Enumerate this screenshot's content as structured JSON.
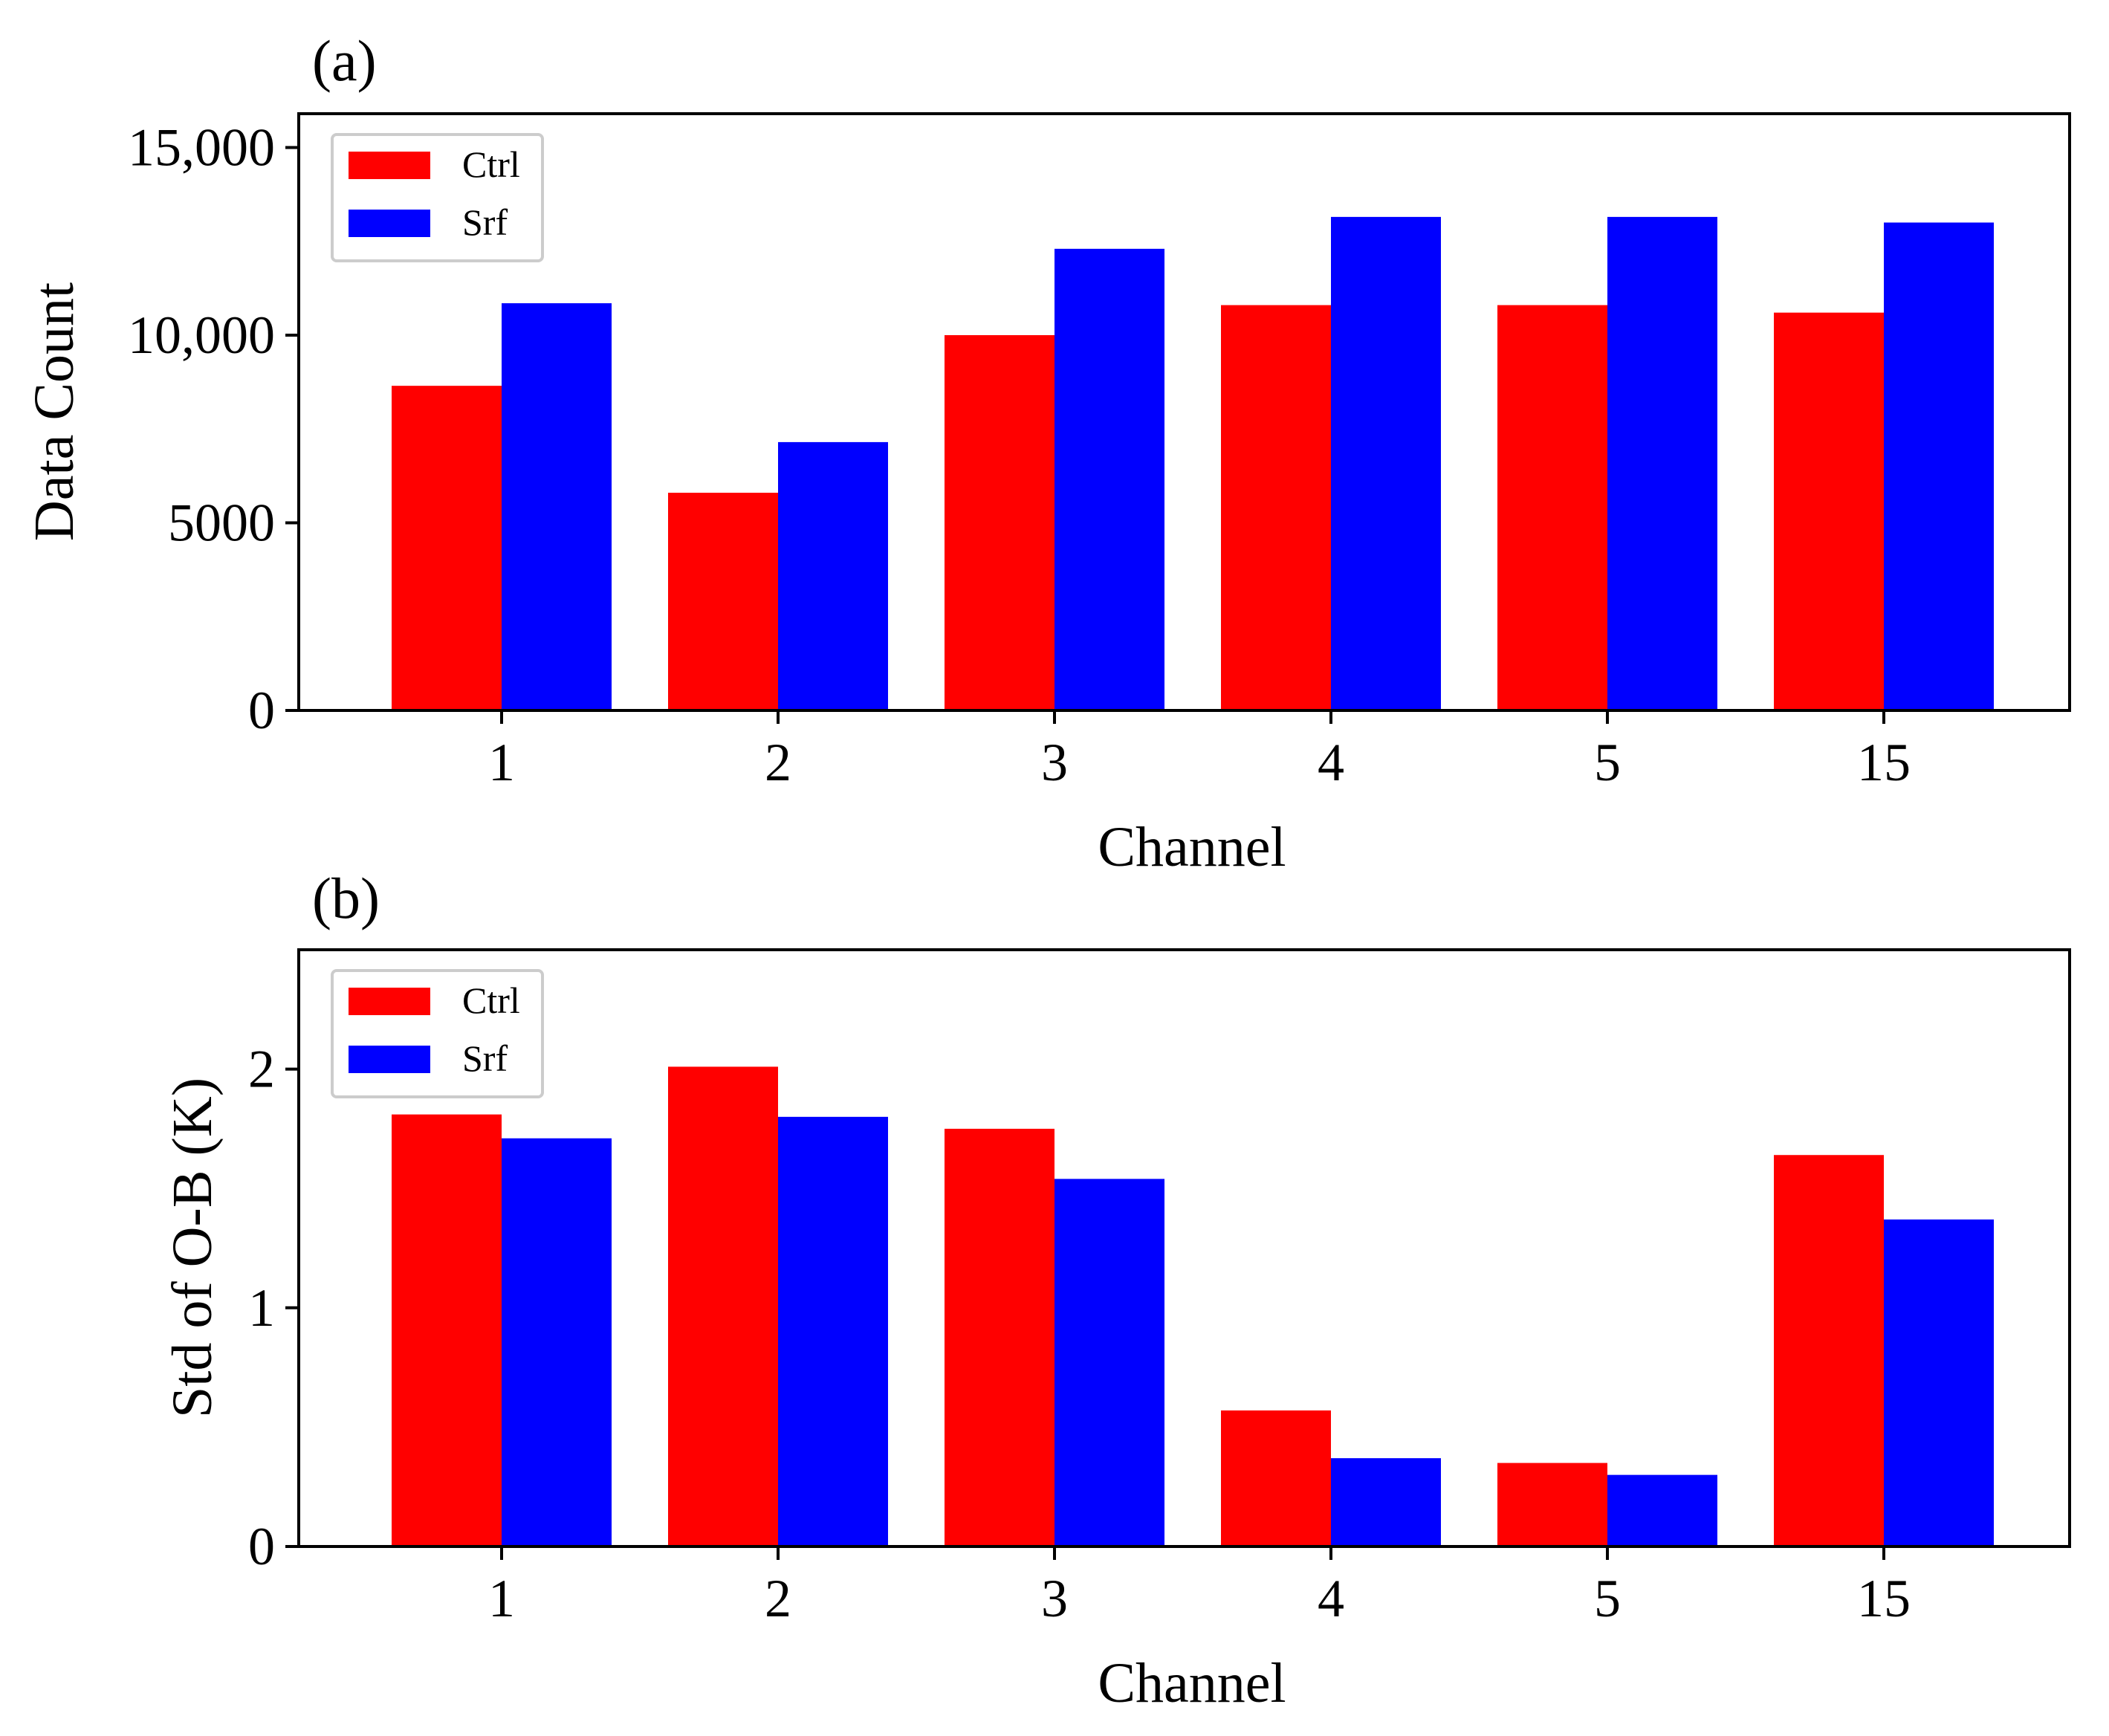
{
  "chart_data": [
    {
      "type": "bar",
      "panel_label": "(a)",
      "categories": [
        "1",
        "2",
        "3",
        "4",
        "5",
        "15"
      ],
      "series": [
        {
          "name": "Ctrl",
          "color": "#ff0000",
          "values": [
            8650,
            5800,
            10000,
            10800,
            10800,
            10600
          ]
        },
        {
          "name": "Srf",
          "color": "#0000ff",
          "values": [
            10850,
            7150,
            12300,
            13150,
            13150,
            13000
          ]
        }
      ],
      "xlabel": "Channel",
      "ylabel": "Data Count",
      "ylim": [
        0,
        15900
      ],
      "yticks": [
        0,
        5000,
        10000,
        15000
      ],
      "ytick_labels": [
        "0",
        "5000",
        "10,000",
        "15,000"
      ],
      "legend_position": "top-left",
      "grid": false
    },
    {
      "type": "bar",
      "panel_label": "(b)",
      "categories": [
        "1",
        "2",
        "3",
        "4",
        "5",
        "15"
      ],
      "series": [
        {
          "name": "Ctrl",
          "color": "#ff0000",
          "values": [
            1.81,
            2.01,
            1.75,
            0.57,
            0.35,
            1.64
          ]
        },
        {
          "name": "Srf",
          "color": "#0000ff",
          "values": [
            1.71,
            1.8,
            1.54,
            0.37,
            0.3,
            1.37
          ]
        }
      ],
      "xlabel": "Channel",
      "ylabel": "Std of O-B (K)",
      "ylim": [
        0,
        2.5
      ],
      "yticks": [
        0,
        1,
        2
      ],
      "ytick_labels": [
        "0",
        "1",
        "2"
      ],
      "legend_position": "top-left",
      "grid": false
    }
  ]
}
